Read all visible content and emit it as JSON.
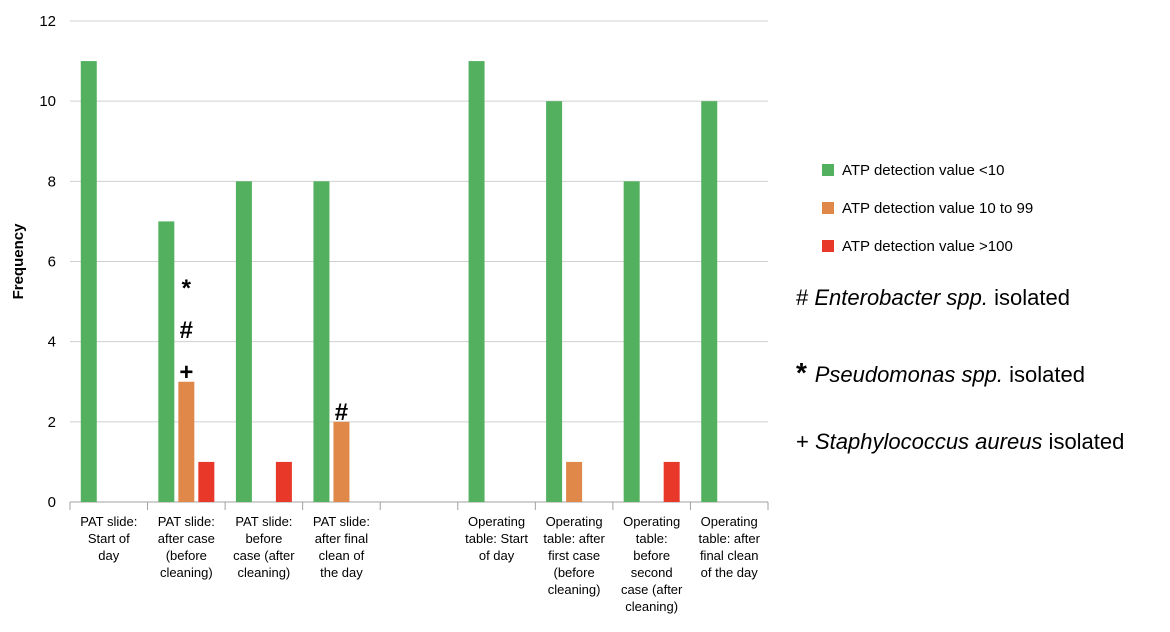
{
  "chart_data": {
    "type": "bar",
    "ylabel": "Frequency",
    "ylim": [
      0,
      12
    ],
    "yticks": [
      0,
      2,
      4,
      6,
      8,
      10,
      12
    ],
    "grid": true,
    "legend_position": "right",
    "categories": [
      [
        "PAT slide:",
        "Start of",
        "day"
      ],
      [
        "PAT slide:",
        "after case",
        "(before",
        "cleaning)"
      ],
      [
        "PAT slide:",
        "before",
        "case (after",
        "cleaning)"
      ],
      [
        "PAT slide:",
        "after final",
        "clean of",
        "the day"
      ],
      [],
      [
        "Operating",
        "table: Start",
        "of day"
      ],
      [
        "Operating",
        "table: after",
        "first case",
        "(before",
        "cleaning)"
      ],
      [
        "Operating",
        "table:",
        "before",
        "second",
        "case (after",
        "cleaning)"
      ],
      [
        "Operating",
        "table: after",
        "final clean",
        "of the day"
      ]
    ],
    "series": [
      {
        "name": "ATP detection value <10",
        "color": "#52b05e",
        "values": [
          11,
          7,
          8,
          8,
          null,
          11,
          10,
          8,
          10
        ]
      },
      {
        "name": "ATP detection value 10 to 99",
        "color": "#e0884a",
        "values": [
          null,
          3,
          null,
          2,
          null,
          null,
          1,
          null,
          null
        ]
      },
      {
        "name": "ATP detection value >100",
        "color": "#e8382a",
        "values": [
          null,
          1,
          1,
          null,
          null,
          null,
          null,
          1,
          null
        ]
      }
    ],
    "annotations": [
      {
        "category": 1,
        "series": 1,
        "symbols": [
          "*",
          "#",
          "+"
        ]
      },
      {
        "category": 3,
        "series": 1,
        "symbols": [
          "#"
        ]
      }
    ]
  },
  "notes": [
    {
      "symbol": "#",
      "organism": "Enterobacter spp.",
      "suffix": " isolated"
    },
    {
      "symbol": "*",
      "organism": "Pseudomonas spp.",
      "suffix": " isolated"
    },
    {
      "symbol": "+",
      "organism": "Staphylococcus aureus",
      "suffix": " isolated"
    }
  ]
}
